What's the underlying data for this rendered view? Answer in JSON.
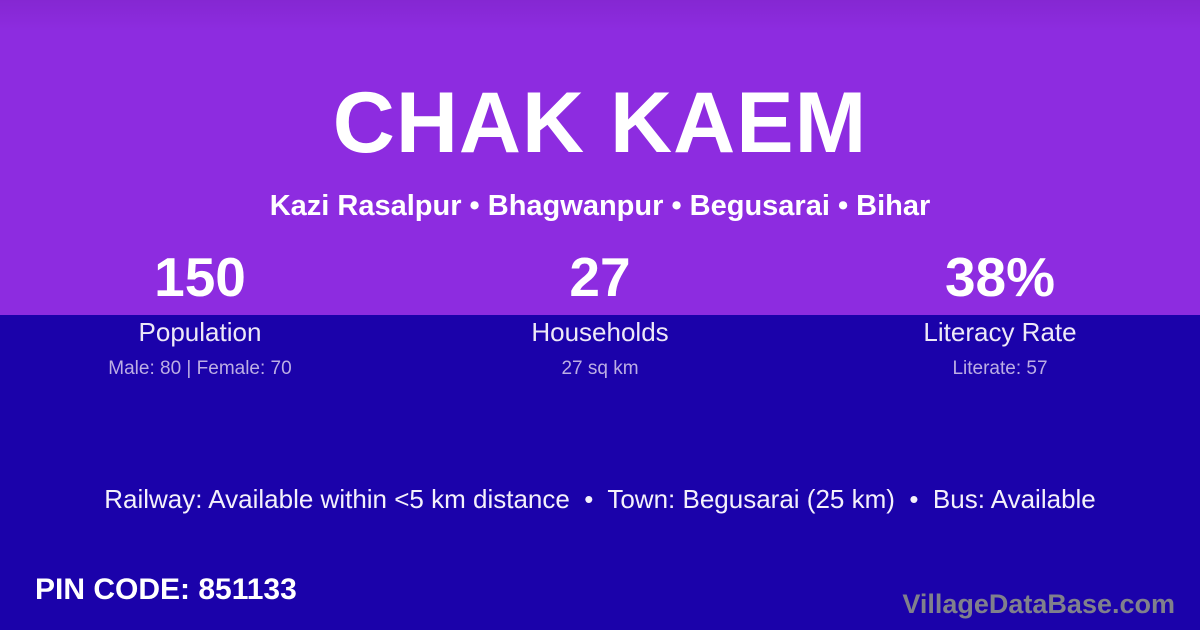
{
  "header": {
    "title": "CHAK KAEM",
    "subtitle": "Kazi Rasalpur • Bhagwanpur • Begusarai • Bihar"
  },
  "stats": [
    {
      "value": "150",
      "label": "Population",
      "detail": "Male: 80 | Female: 70"
    },
    {
      "value": "27",
      "label": "Households",
      "detail": "27 sq km"
    },
    {
      "value": "38%",
      "label": "Literacy Rate",
      "detail": "Literate: 57"
    }
  ],
  "amenities": {
    "text": "Railway: Available within <5 km distance  •  Town: Begusarai (25 km)  •  Bus: Available"
  },
  "footer": {
    "pin_code": "PIN CODE: 851133",
    "watermark": "VillageDataBase.com"
  },
  "colors": {
    "top_background": "#8D2CE0",
    "bottom_background": "#1B02AA",
    "text_primary": "#FFFFFF",
    "text_label": "#EDE9F7",
    "text_detail": "#BCAEE4",
    "text_watermark": "#80808C"
  }
}
